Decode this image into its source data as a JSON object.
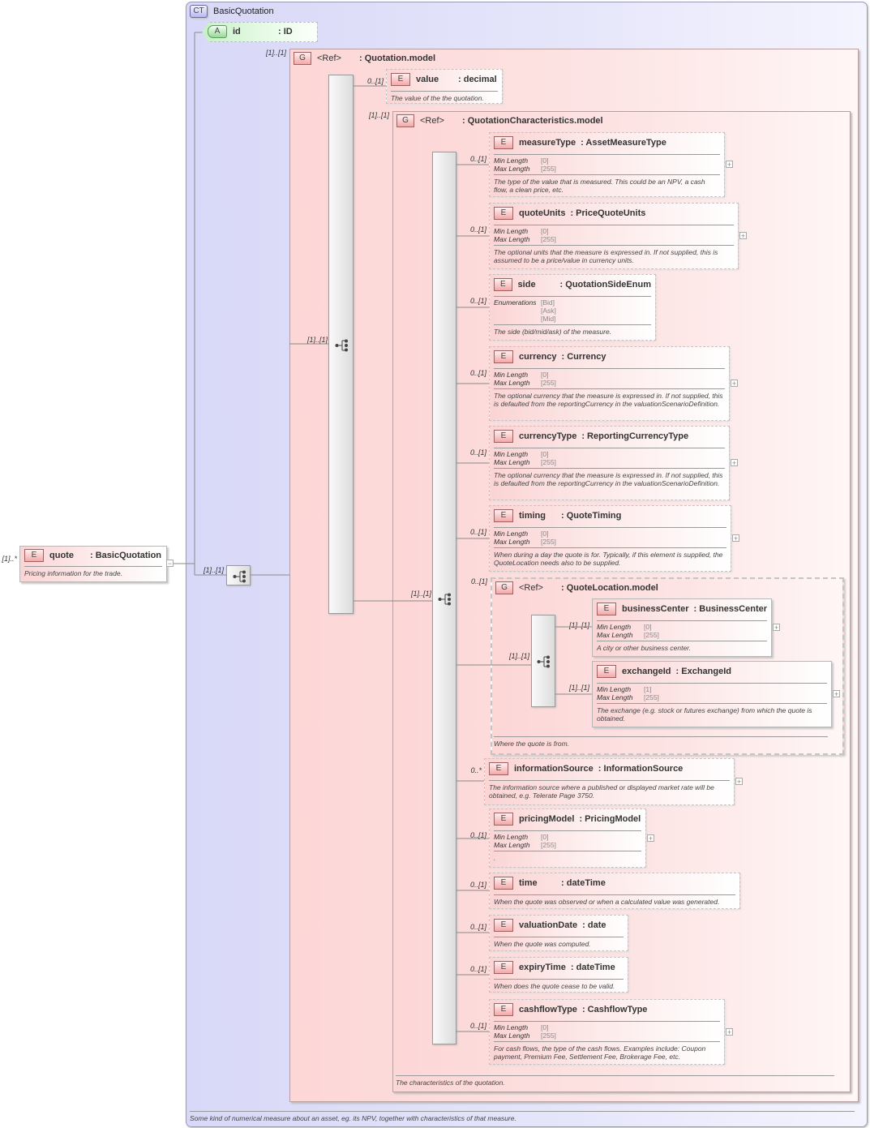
{
  "complex_type": {
    "badge": "CT",
    "name": "BasicQuotation",
    "description": "Some kind of numerical measure about an asset, eg. its NPV, together with characteristics of that measure."
  },
  "root": {
    "badge": "E",
    "name": "quote",
    "type": ": BasicQuotation",
    "occurrence": "[1]..*",
    "description": "Pricing information for the trade.",
    "collapse_symbol": "−"
  },
  "attribute": {
    "badge": "A",
    "name": "id",
    "type": ": ID"
  },
  "sequence_occurrence": "[1]..[1]",
  "groups": [
    {
      "id": "quotation_model",
      "badge": "G",
      "ref": "<Ref>",
      "type": ": Quotation.model",
      "occurrence": "[1]..[1]",
      "sequence_occurrence": "[1]..[1]",
      "description": ""
    },
    {
      "id": "quotation_characteristics",
      "badge": "G",
      "ref": "<Ref>",
      "type": ": QuotationCharacteristics.model",
      "occurrence": "[1]..[1]",
      "sequence_occurrence": "[1]..[1]",
      "description": "The characteristics of the quotation."
    },
    {
      "id": "quote_location",
      "badge": "G",
      "ref": "<Ref>",
      "type": ": QuoteLocation.model",
      "occurrence": "0..[1]",
      "sequence_occurrence": "[1]..[1]",
      "description": "Where the quote is from."
    }
  ],
  "elements": [
    {
      "id": "value",
      "badge": "E",
      "name": "value",
      "type": ": decimal",
      "occurrence": "0..[1]",
      "facets": [],
      "description": "The value of the the quotation.",
      "expandable": false
    },
    {
      "id": "measureType",
      "badge": "E",
      "name": "measureType",
      "type": ": AssetMeasureType",
      "occurrence": "0..[1]",
      "facets": [
        {
          "label": "Min Length",
          "value": "[0]"
        },
        {
          "label": "Max Length",
          "value": "[255]"
        }
      ],
      "description": "The type of the value that is measured. This could be an NPV, a cash flow, a clean price, etc.",
      "expandable": true
    },
    {
      "id": "quoteUnits",
      "badge": "E",
      "name": "quoteUnits",
      "type": ": PriceQuoteUnits",
      "occurrence": "0..[1]",
      "facets": [
        {
          "label": "Min Length",
          "value": "[0]"
        },
        {
          "label": "Max Length",
          "value": "[255]"
        }
      ],
      "description": "The optional units that the measure is expressed in. If not supplied, this is assumed to be a price/value in currency units.",
      "expandable": true
    },
    {
      "id": "side",
      "badge": "E",
      "name": "side",
      "type": ": QuotationSideEnum",
      "occurrence": "0..[1]",
      "facets": [
        {
          "label": "Enumerations",
          "value": "[Bid]"
        },
        {
          "label": "",
          "value": "[Ask]"
        },
        {
          "label": "",
          "value": "[Mid]"
        }
      ],
      "description": "The side (bid/mid/ask) of the measure.",
      "expandable": false
    },
    {
      "id": "currency",
      "badge": "E",
      "name": "currency",
      "type": ": Currency",
      "occurrence": "0..[1]",
      "facets": [
        {
          "label": "Min Length",
          "value": "[0]"
        },
        {
          "label": "Max Length",
          "value": "[255]"
        }
      ],
      "description": "The optional currency that the measure is expressed in. If not supplied, this is defaulted from the reportingCurrency in the valuationScenarioDefinition.",
      "expandable": true
    },
    {
      "id": "currencyType",
      "badge": "E",
      "name": "currencyType",
      "type": ": ReportingCurrencyType",
      "occurrence": "0..[1]",
      "facets": [
        {
          "label": "Min Length",
          "value": "[0]"
        },
        {
          "label": "Max Length",
          "value": "[255]"
        }
      ],
      "description": "The optional currency that the measure is expressed in. If not supplied, this is defaulted from the reportingCurrency in the valuationScenarioDefinition.",
      "expandable": true
    },
    {
      "id": "timing",
      "badge": "E",
      "name": "timing",
      "type": ": QuoteTiming",
      "occurrence": "0..[1]",
      "facets": [
        {
          "label": "Min Length",
          "value": "[0]"
        },
        {
          "label": "Max Length",
          "value": "[255]"
        }
      ],
      "description": "When during a day the quote is for. Typically, if this element is supplied, the QuoteLocation needs also to be supplied.",
      "expandable": true
    },
    {
      "id": "businessCenter",
      "badge": "E",
      "name": "businessCenter",
      "type": ": BusinessCenter",
      "occurrence": "[1]..[1]",
      "facets": [
        {
          "label": "Min Length",
          "value": "[0]"
        },
        {
          "label": "Max Length",
          "value": "[255]"
        }
      ],
      "description": "A city or other business center.",
      "expandable": true
    },
    {
      "id": "exchangeId",
      "badge": "E",
      "name": "exchangeId",
      "type": ": ExchangeId",
      "occurrence": "[1]..[1]",
      "facets": [
        {
          "label": "Min Length",
          "value": "[1]"
        },
        {
          "label": "Max Length",
          "value": "[255]"
        }
      ],
      "description": "The exchange (e.g. stock or futures exchange) from which the quote is obtained.",
      "expandable": true
    },
    {
      "id": "informationSource",
      "badge": "E",
      "name": "informationSource",
      "type": ": InformationSource",
      "occurrence": "0..*",
      "facets": [],
      "description": "The information source where a published or displayed market rate will be obtained, e.g. Telerate Page 3750.",
      "expandable": true
    },
    {
      "id": "pricingModel",
      "badge": "E",
      "name": "pricingModel",
      "type": ": PricingModel",
      "occurrence": "0..[1]",
      "facets": [
        {
          "label": "Min Length",
          "value": "[0]"
        },
        {
          "label": "Max Length",
          "value": "[255]"
        }
      ],
      "description": ".",
      "expandable": true
    },
    {
      "id": "time",
      "badge": "E",
      "name": "time",
      "type": ": dateTime",
      "occurrence": "0..[1]",
      "facets": [],
      "description": "When the quote was observed or when a calculated value was generated.",
      "expandable": false
    },
    {
      "id": "valuationDate",
      "badge": "E",
      "name": "valuationDate",
      "type": ": date",
      "occurrence": "0..[1]",
      "facets": [],
      "description": "When the quote was computed.",
      "expandable": false
    },
    {
      "id": "expiryTime",
      "badge": "E",
      "name": "expiryTime",
      "type": ": dateTime",
      "occurrence": "0..[1]",
      "facets": [],
      "description": "When does the quote cease to be valid.",
      "expandable": false
    },
    {
      "id": "cashflowType",
      "badge": "E",
      "name": "cashflowType",
      "type": ": CashflowType",
      "occurrence": "0..[1]",
      "facets": [
        {
          "label": "Min Length",
          "value": "[0]"
        },
        {
          "label": "Max Length",
          "value": "[255]"
        }
      ],
      "description": "For cash flows, the type of the cash flows. Examples include: Coupon payment, Premium Fee, Settlement Fee, Brokerage Fee, etc.",
      "expandable": true
    }
  ],
  "colors": {
    "complex_type_bg": "#d8d8f8",
    "group_bg": "#fdd6d6",
    "element_bg": "#fbd4d4",
    "attribute_bg": "#c8f0c8"
  }
}
